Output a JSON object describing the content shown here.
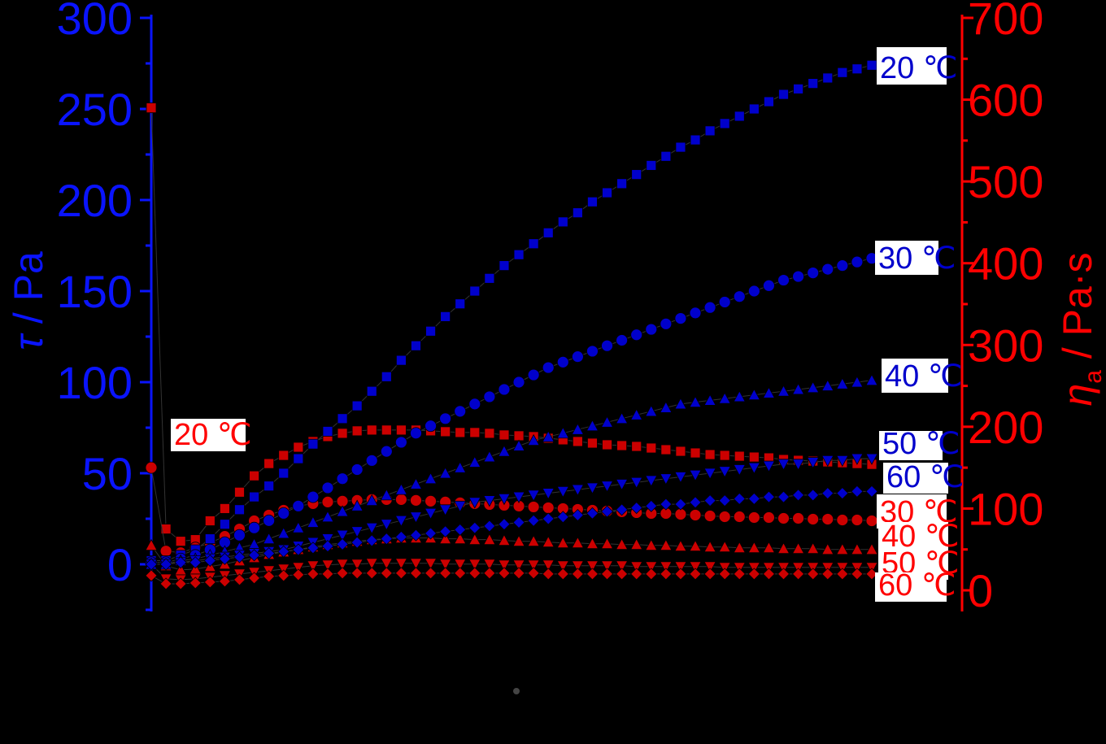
{
  "chart_data": {
    "type": "scatter",
    "colors": {
      "left_axis": "#0a14ff",
      "right_axis": "#ff0000",
      "tau_series": "#0000cc",
      "eta_series": "#cc0000",
      "background": "#000000"
    },
    "left_axis": {
      "label_symbol": "τ",
      "label_unit": " / Pa",
      "ticks": [
        "300",
        "250",
        "200",
        "150",
        "100",
        "50",
        "0"
      ],
      "ylim": [
        -25,
        300
      ]
    },
    "right_axis": {
      "label_symbol": "η",
      "label_sub": "a",
      "label_unit": " / Pa·s",
      "ticks": [
        "700",
        "600",
        "500",
        "400",
        "300",
        "200",
        "100",
        "0"
      ],
      "ylim": [
        -30,
        700
      ]
    },
    "x": {
      "n_points": 50,
      "range": [
        0,
        1
      ]
    },
    "tau_series": [
      {
        "name": "20 ℃",
        "marker": "square",
        "values": [
          2,
          2,
          5,
          8,
          14,
          22,
          30,
          37,
          43,
          50,
          58,
          66,
          73,
          80,
          87,
          95,
          103,
          112,
          120,
          128,
          136,
          143,
          150,
          157,
          164,
          170,
          176,
          182,
          188,
          193,
          199,
          204,
          209,
          214,
          219,
          224,
          229,
          233,
          238,
          242,
          246,
          250,
          254,
          258,
          261,
          264,
          267,
          270,
          272,
          274
        ]
      },
      {
        "name": "30 ℃",
        "marker": "circle",
        "values": [
          1,
          1,
          3,
          5,
          8,
          12,
          16,
          20,
          24,
          28,
          32,
          37,
          42,
          47,
          52,
          57,
          62,
          67,
          72,
          76,
          80,
          84,
          88,
          92,
          96,
          100,
          104,
          108,
          111,
          114,
          117,
          120,
          123,
          126,
          129,
          132,
          135,
          138,
          141,
          144,
          147,
          150,
          153,
          156,
          158,
          160,
          162,
          164,
          166,
          168
        ]
      },
      {
        "name": "40 ℃",
        "marker": "triangle-up",
        "values": [
          0,
          0,
          2,
          3,
          5,
          7,
          9,
          11,
          14,
          17,
          20,
          23,
          26,
          29,
          32,
          35,
          38,
          41,
          44,
          47,
          50,
          53,
          56,
          59,
          62,
          65,
          68,
          70,
          72,
          74,
          76,
          78,
          80,
          82,
          84,
          86,
          88,
          89,
          90,
          91,
          92,
          93,
          94,
          95,
          96,
          97,
          98,
          99,
          100,
          101
        ]
      },
      {
        "name": "50 ℃",
        "marker": "triangle-down",
        "values": [
          0,
          0,
          1,
          2,
          3,
          4,
          5,
          6,
          7,
          8,
          10,
          12,
          14,
          16,
          18,
          20,
          22,
          24,
          26,
          28,
          30,
          32,
          34,
          35,
          36,
          37,
          38,
          39,
          40,
          41,
          42,
          43,
          44,
          45,
          46,
          47,
          48,
          49,
          50,
          51,
          52,
          53,
          54,
          55,
          55,
          56,
          57,
          57,
          58,
          58
        ]
      },
      {
        "name": "60 ℃",
        "marker": "diamond",
        "values": [
          0,
          0,
          1,
          1,
          2,
          3,
          4,
          5,
          6,
          7,
          8,
          9,
          10,
          11,
          12,
          13,
          14,
          15,
          16,
          17,
          18,
          19,
          20,
          21,
          22,
          23,
          24,
          25,
          26,
          27,
          28,
          29,
          30,
          31,
          32,
          33,
          33,
          34,
          35,
          35,
          36,
          36,
          37,
          37,
          38,
          38,
          39,
          39,
          40,
          40
        ]
      }
    ],
    "eta_series": [
      {
        "name": "20 ℃",
        "marker": "square",
        "values": [
          590,
          75,
          60,
          62,
          85,
          100,
          120,
          140,
          155,
          165,
          175,
          182,
          188,
          192,
          195,
          196,
          196,
          196,
          196,
          195,
          194,
          193,
          193,
          192,
          190,
          189,
          188,
          186,
          184,
          182,
          180,
          178,
          177,
          176,
          174,
          172,
          170,
          168,
          166,
          165,
          164,
          163,
          162,
          160,
          159,
          158,
          157,
          156,
          155,
          154
        ]
      },
      {
        "name": "30 ℃",
        "marker": "circle",
        "values": [
          150,
          48,
          46,
          52,
          58,
          66,
          75,
          85,
          92,
          98,
          103,
          106,
          108,
          109,
          110,
          111,
          111,
          111,
          110,
          109,
          108,
          107,
          106,
          105,
          104,
          103,
          102,
          101,
          100,
          99,
          98,
          97,
          96,
          95,
          94,
          94,
          93,
          92,
          91,
          90,
          90,
          89,
          89,
          88,
          88,
          87,
          87,
          86,
          86,
          85
        ]
      },
      {
        "name": "40 ℃",
        "marker": "triangle-up",
        "values": [
          55,
          30,
          25,
          26,
          29,
          32,
          36,
          40,
          44,
          47,
          50,
          53,
          56,
          58,
          60,
          62,
          63,
          64,
          64,
          64,
          63,
          63,
          62,
          62,
          61,
          60,
          60,
          59,
          58,
          58,
          57,
          57,
          56,
          56,
          55,
          55,
          54,
          54,
          53,
          53,
          52,
          52,
          52,
          51,
          51,
          51,
          50,
          50,
          50,
          50
        ]
      },
      {
        "name": "50 ℃",
        "marker": "triangle-down",
        "values": [
          32,
          14,
          13,
          14,
          16,
          18,
          20,
          22,
          24,
          26,
          28,
          30,
          31,
          32,
          32,
          33,
          33,
          33,
          33,
          33,
          32,
          32,
          32,
          32,
          31,
          31,
          31,
          31,
          30,
          30,
          30,
          30,
          30,
          29,
          29,
          29,
          29,
          29,
          29,
          28,
          28,
          28,
          28,
          28,
          28,
          28,
          28,
          28,
          28,
          28
        ]
      },
      {
        "name": "60 ℃",
        "marker": "diamond",
        "values": [
          18,
          8,
          8,
          9,
          10,
          11,
          13,
          15,
          17,
          18,
          19,
          20,
          20,
          21,
          21,
          21,
          21,
          21,
          21,
          21,
          21,
          21,
          21,
          21,
          21,
          21,
          21,
          20,
          20,
          20,
          20,
          20,
          20,
          20,
          20,
          20,
          20,
          20,
          20,
          20,
          20,
          20,
          20,
          20,
          20,
          20,
          20,
          20,
          20,
          20
        ]
      }
    ],
    "tags": [
      {
        "text": "20 ℃",
        "color": "#0000cc"
      },
      {
        "text": "30 ℃",
        "color": "#0000cc"
      },
      {
        "text": "40 ℃",
        "color": "#0000cc"
      },
      {
        "text": "50 ℃",
        "color": "#0000cc"
      },
      {
        "text": "60 ℃",
        "color": "#0000cc"
      },
      {
        "text": "30 ℃",
        "color": "#ff0000"
      },
      {
        "text": "40 ℃",
        "color": "#ff0000"
      },
      {
        "text": "50 ℃",
        "color": "#ff0000"
      },
      {
        "text": "60 ℃",
        "color": "#ff0000"
      },
      {
        "text": "20 ℃",
        "color": "#ff0000"
      }
    ]
  }
}
